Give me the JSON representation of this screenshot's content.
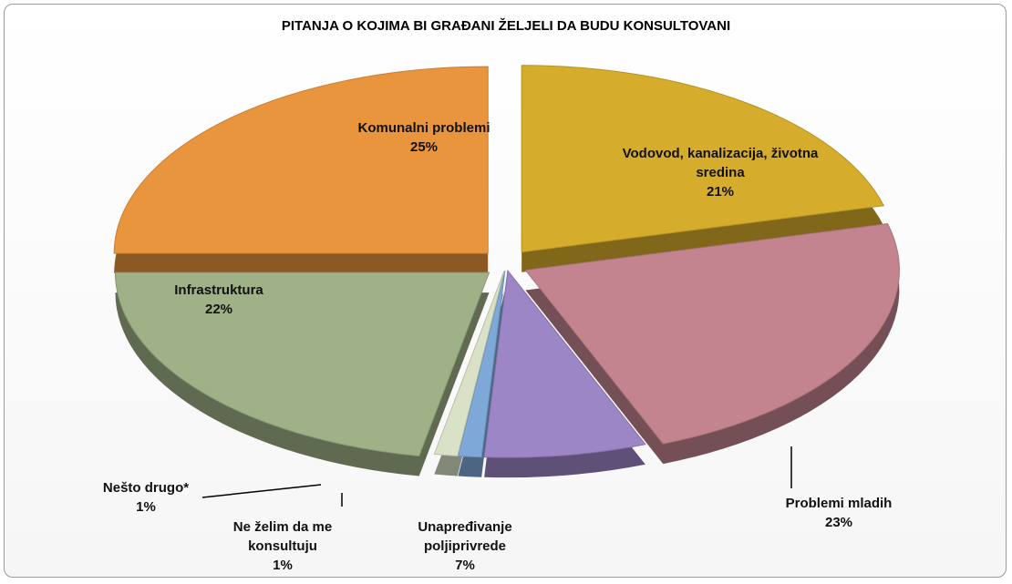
{
  "chart_data": {
    "type": "pie",
    "title": "PITANJA O KOJIMA BI GRAĐANI ŽELJELI DA BUDU KONSULTOVANI",
    "categories": [
      "Vodovod, kanalizacija, životna sredina",
      "Problemi mladih",
      "Unapređivanje poljiprivrede",
      "Ne želim da me konsultuju",
      "Nešto drugo*",
      "Infrastruktura",
      "Komunalni problemi"
    ],
    "values": [
      21,
      23,
      7,
      1,
      1,
      22,
      25
    ],
    "value_labels": [
      "21%",
      "23%",
      "7%",
      "1%",
      "1%",
      "22%",
      "25%"
    ],
    "colors": [
      "#d6ac2c",
      "#c3848f",
      "#9c86c6",
      "#7ea8d8",
      "#d9e2c6",
      "#a0b087",
      "#e9953d"
    ]
  }
}
